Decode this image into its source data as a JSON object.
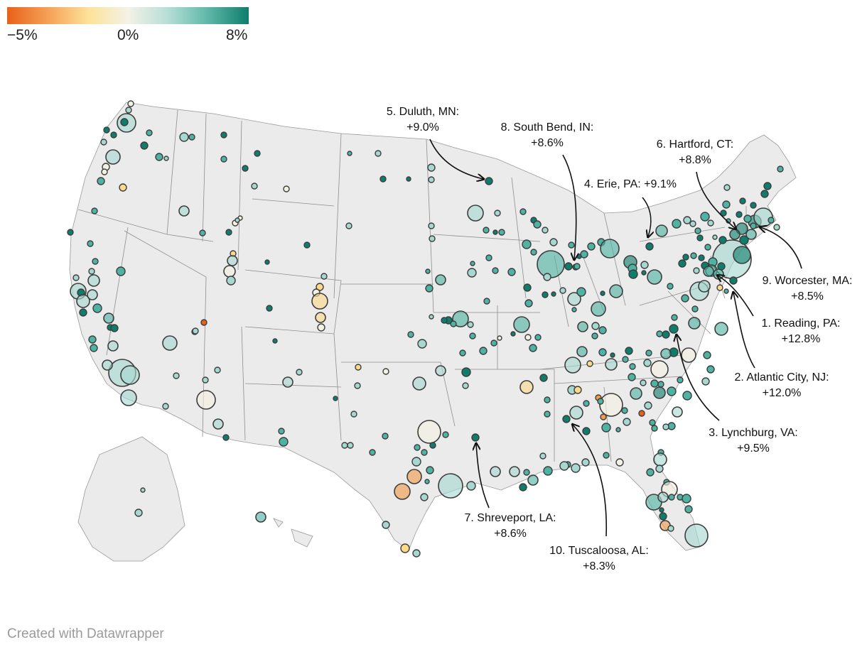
{
  "legend": {
    "min_label": "−5%",
    "mid_label": "0%",
    "max_label": "8%",
    "colors": [
      "#e8611a",
      "#f6a55a",
      "#fde39a",
      "#f4f2e6",
      "#b9dfd8",
      "#5fb8a8",
      "#0e7d6c"
    ]
  },
  "annotations": [
    {
      "id": "duluth",
      "line1": "5. Duluth, MN:",
      "line2": "+9.0%"
    },
    {
      "id": "southbend",
      "line1": "8. South Bend, IN:",
      "line2": "+8.6%"
    },
    {
      "id": "hartford",
      "line1": "6. Hartford, CT:",
      "line2": "+8.8%"
    },
    {
      "id": "erie",
      "line1": "4. Erie, PA: +9.1%",
      "line2": ""
    },
    {
      "id": "worcester",
      "line1": "9. Worcester, MA:",
      "line2": "+8.5%"
    },
    {
      "id": "reading",
      "line1": "1. Reading, PA:",
      "line2": "+12.8%"
    },
    {
      "id": "atlantic",
      "line1": "2. Atlantic City, NJ:",
      "line2": "+12.0%"
    },
    {
      "id": "lynchburg",
      "line1": "3. Lynchburg, VA:",
      "line2": "+9.5%"
    },
    {
      "id": "shreveport",
      "line1": "7. Shreveport, LA:",
      "line2": "+8.6%"
    },
    {
      "id": "tuscaloosa",
      "line1": "10. Tuscaloosa, AL:",
      "line2": "+8.3%"
    }
  ],
  "credit": "Created with Datawrapper"
}
